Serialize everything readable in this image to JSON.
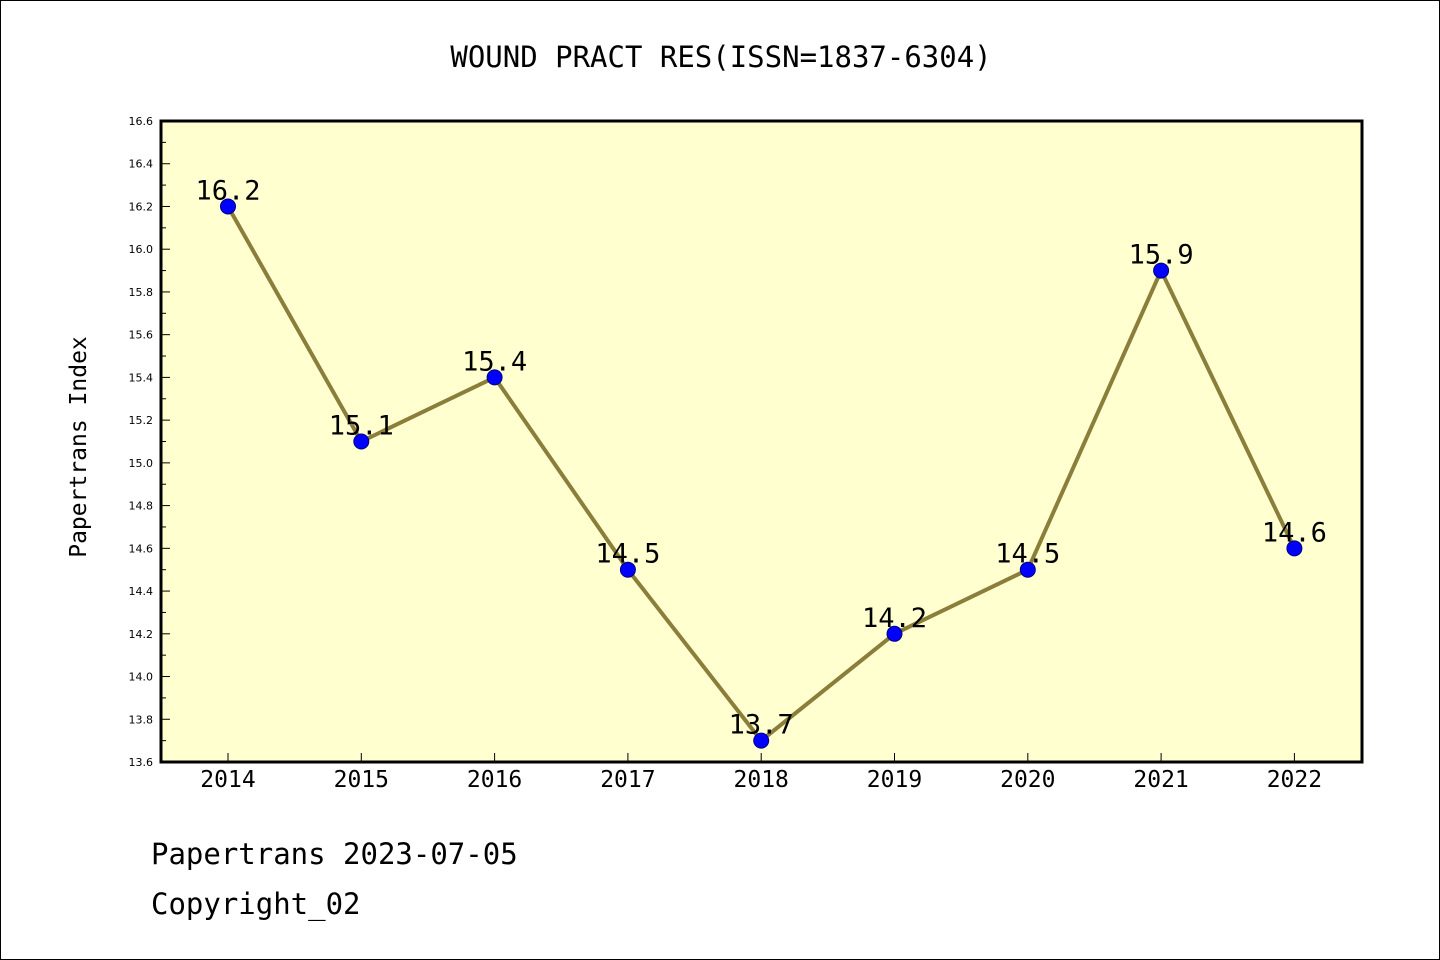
{
  "chart_data": {
    "type": "line",
    "title": "WOUND PRACT RES(ISSN=1837-6304)",
    "xlabel": "",
    "ylabel": "Papertrans Index",
    "categories": [
      "2014",
      "2015",
      "2016",
      "2017",
      "2018",
      "2019",
      "2020",
      "2021",
      "2022"
    ],
    "series": [
      {
        "values": [
          16.2,
          15.1,
          15.4,
          14.5,
          13.7,
          14.2,
          14.5,
          15.9,
          14.6
        ],
        "labels": [
          "16.2",
          "15.1",
          "15.4",
          "14.5",
          "13.7",
          "14.2",
          "14.5",
          "15.9",
          "14.6"
        ]
      }
    ],
    "ylim": [
      13.6,
      16.6
    ],
    "yticks": [
      "13.6",
      "13.8",
      "14.0",
      "14.2",
      "14.4",
      "14.6",
      "14.8",
      "15.0",
      "15.2",
      "15.4",
      "15.6",
      "15.8",
      "16.0",
      "16.2",
      "16.4",
      "16.6"
    ],
    "grid": false,
    "legend": "none",
    "colors": {
      "plot_background": "#ffffd0",
      "line": "#8b7d3a",
      "marker": "#0000ff",
      "marker_edge": "#000080"
    }
  },
  "footer": {
    "date_text": "Papertrans 2023-07-05",
    "copyright": "Copyright_02"
  }
}
